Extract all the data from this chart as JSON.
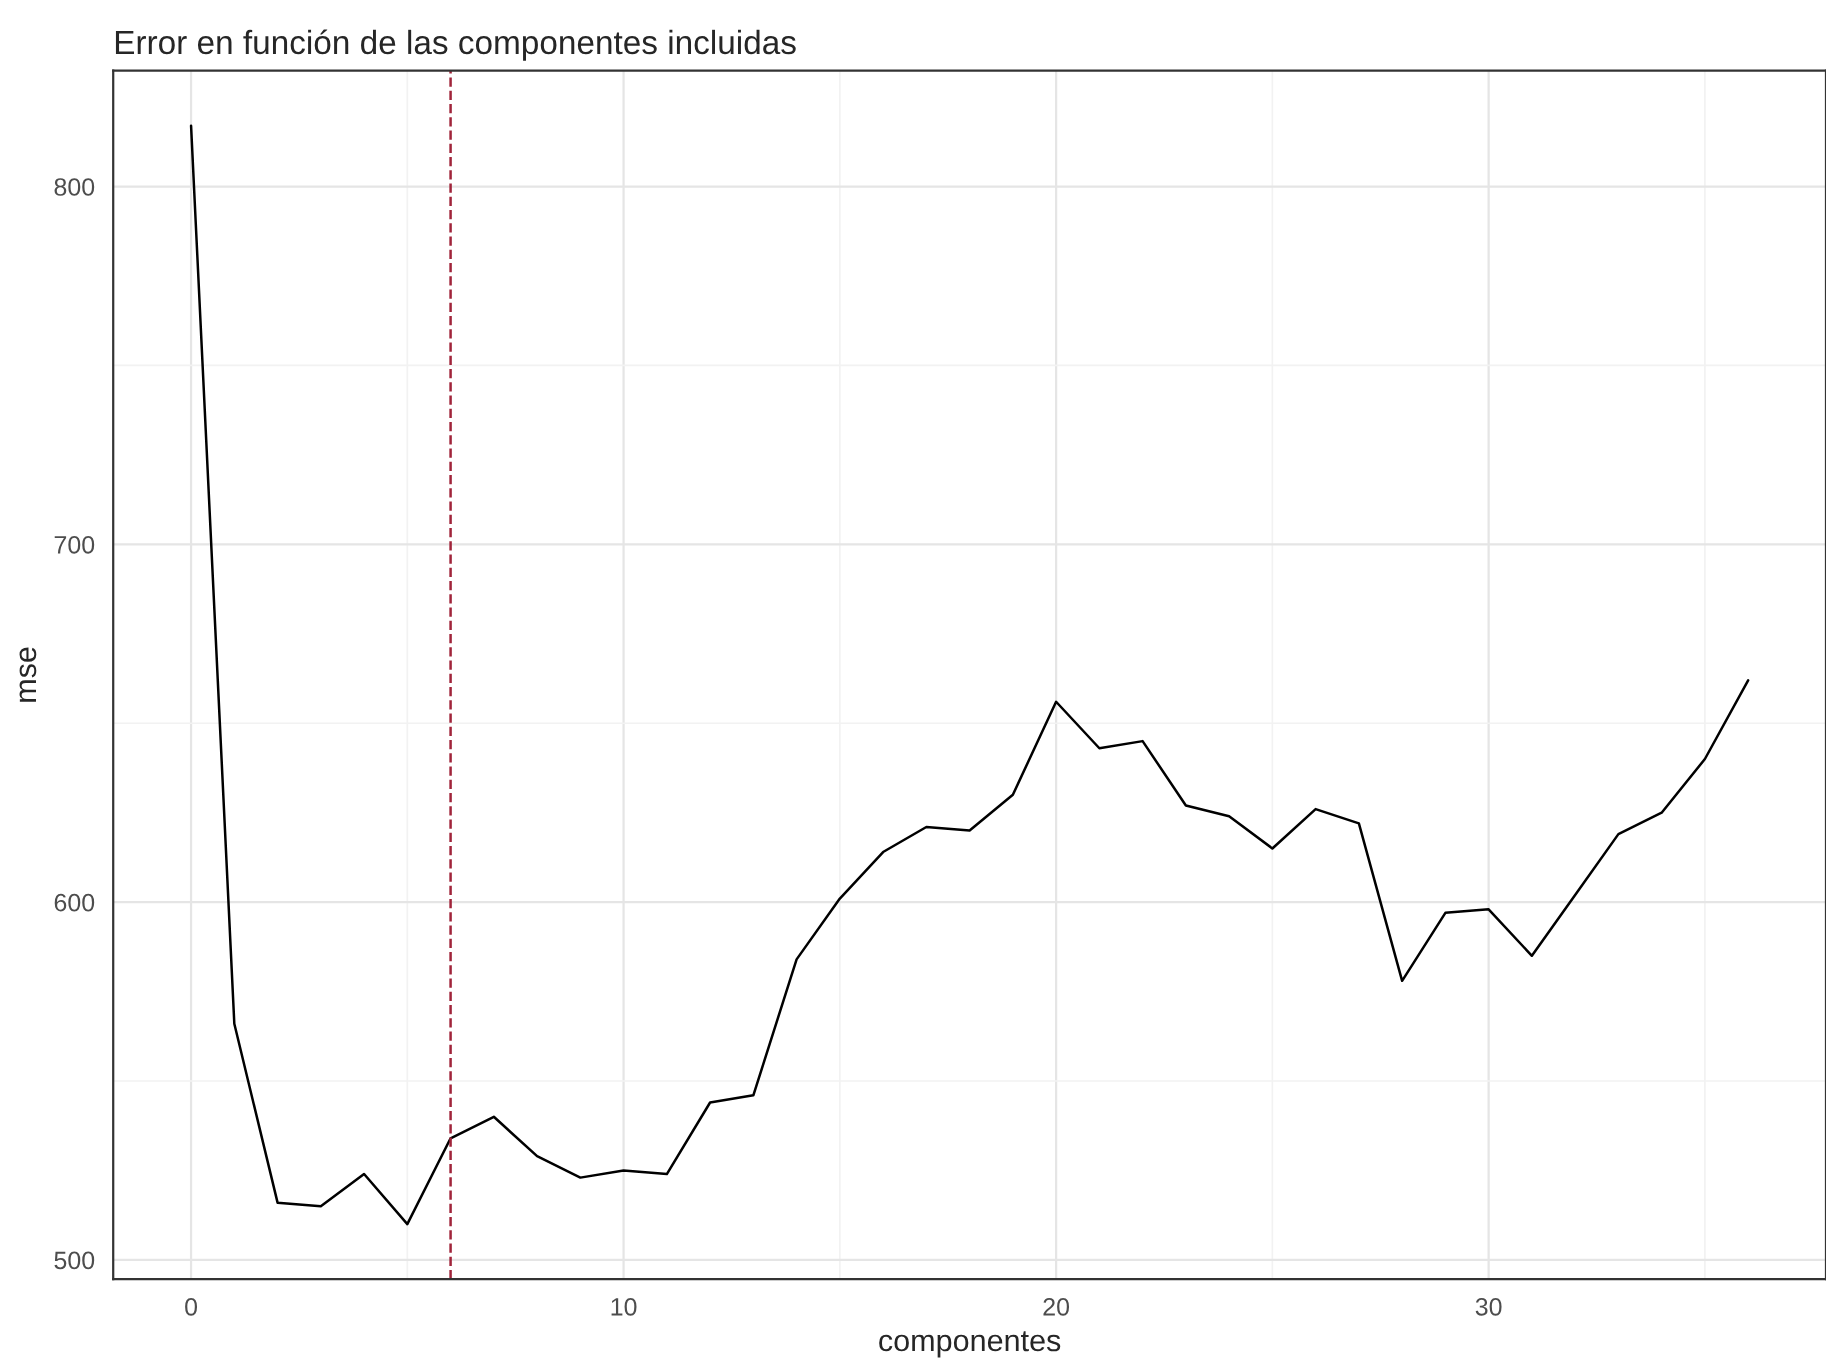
{
  "chart_data": {
    "type": "line",
    "title": "Error en función de las componentes incluidas",
    "xlabel": "componentes",
    "ylabel": "mse",
    "x": [
      0,
      1,
      2,
      3,
      4,
      5,
      6,
      7,
      8,
      9,
      10,
      11,
      12,
      13,
      14,
      15,
      16,
      17,
      18,
      19,
      20,
      21,
      22,
      23,
      24,
      25,
      26,
      27,
      28,
      29,
      30,
      31,
      32,
      33,
      34,
      35,
      36
    ],
    "series": [
      {
        "color": "#000000",
        "values": [
          817,
          566,
          516,
          515,
          524,
          510,
          534,
          540,
          529,
          523,
          525,
          524,
          544,
          546,
          584,
          601,
          614,
          621,
          620,
          630,
          656,
          643,
          645,
          627,
          624,
          615,
          626,
          622,
          578,
          597,
          598,
          585,
          602,
          619,
          625,
          640,
          662
        ]
      }
    ],
    "xlim": [
      -1.8,
      37.8
    ],
    "ylim": [
      494.6,
      832.4
    ],
    "xticks": [
      0,
      {
        "value": 5,
        "label": null
      },
      10,
      {
        "value": 15,
        "label": null
      },
      20,
      {
        "value": 25,
        "label": null
      },
      30,
      {
        "value": 35,
        "label": null
      }
    ],
    "yticks": [
      500,
      {
        "value": 550,
        "label": null
      },
      600,
      {
        "value": 650,
        "label": null
      },
      700,
      {
        "value": 750,
        "label": null
      },
      800
    ],
    "ref_lines": [
      {
        "axis": "x",
        "value": 6,
        "color": "#a0243a",
        "line_style": "dashed"
      }
    ],
    "grid": true
  }
}
